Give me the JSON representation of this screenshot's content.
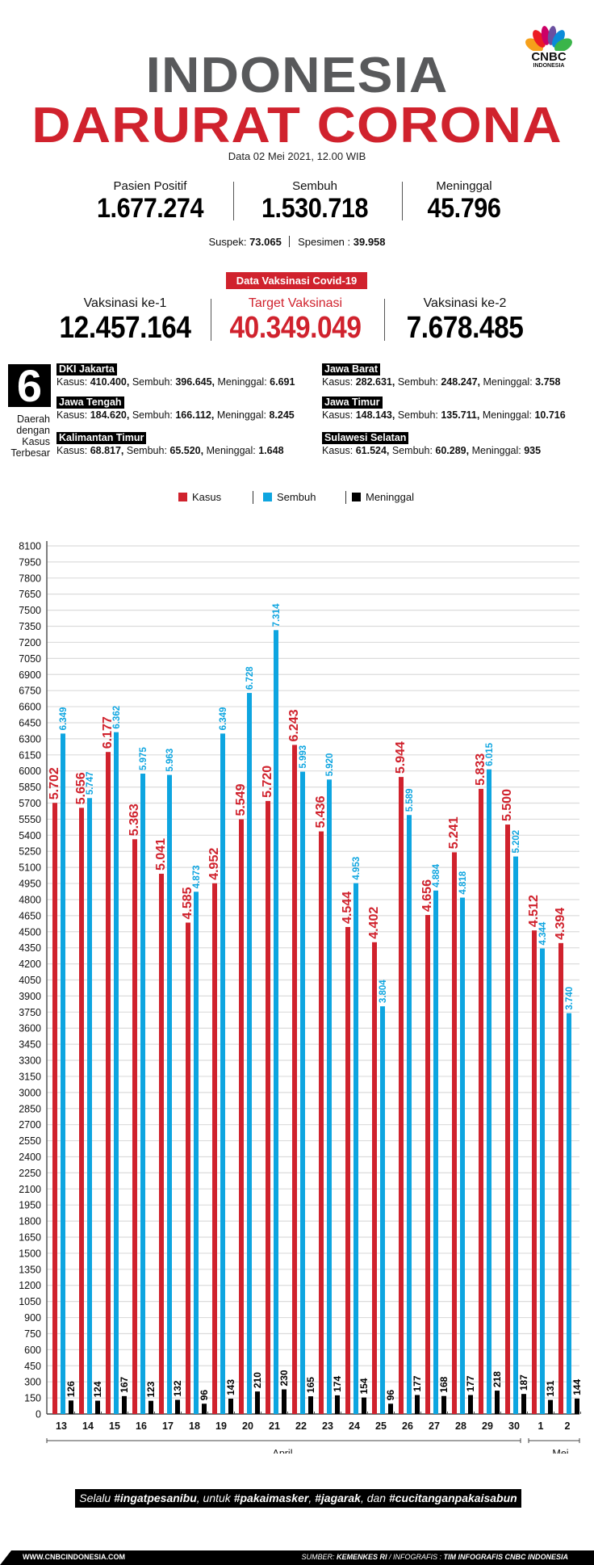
{
  "logo": {
    "brand": "CNBC",
    "sub": "INDONESIA",
    "icon": "peacock-logo-icon"
  },
  "header": {
    "title_line1": "INDONESIA",
    "title_line2": "DARURAT CORONA",
    "date": "Data 02 Mei  2021, 12.00 WIB"
  },
  "national_stats": [
    {
      "label": "Pasien Positif",
      "value": "1.677.274"
    },
    {
      "label": "Sembuh",
      "value": "1.530.718"
    },
    {
      "label": "Meninggal",
      "value": "45.796"
    }
  ],
  "sub_stats": {
    "suspek_label": "Suspek: ",
    "suspek_value": "73.065",
    "spesimen_label": "Spesimen : ",
    "spesimen_value": "39.958"
  },
  "vaccination": {
    "badge": "Data Vaksinasi Covid-19",
    "items": [
      {
        "label": "Vaksinasi ke-1",
        "value": "12.457.164"
      },
      {
        "label": "Target Vaksinasi",
        "value": "40.349.049"
      },
      {
        "label": "Vaksinasi ke-2",
        "value": "7.678.485"
      }
    ]
  },
  "regions_block": {
    "count": "6",
    "caption": [
      "Daerah",
      "dengan",
      "Kasus",
      "Terbesar"
    ],
    "kasus_label": "Kasus: ",
    "sembuh_label": "Sembuh: ",
    "meninggal_label": "Meninggal: ",
    "regions": [
      {
        "name": "DKI Jakarta",
        "kasus": "410.400,",
        "sembuh": "396.645,",
        "meninggal": "6.691"
      },
      {
        "name": "Jawa Barat",
        "kasus": "282.631,",
        "sembuh": "248.247,",
        "meninggal": "3.758"
      },
      {
        "name": "Jawa Tengah",
        "kasus": "184.620,",
        "sembuh": "166.112,",
        "meninggal": "8.245"
      },
      {
        "name": "Jawa Timur",
        "kasus": "148.143,",
        "sembuh": "135.711,",
        "meninggal": "10.716"
      },
      {
        "name": "Kalimantan Timur",
        "kasus": "68.817,",
        "sembuh": "65.520,",
        "meninggal": "1.648"
      },
      {
        "name": "Sulawesi Selatan",
        "kasus": "61.524,",
        "sembuh": "60.289,",
        "meninggal": "935"
      }
    ]
  },
  "colors": {
    "kasus": "#d0222d",
    "sembuh": "#0ea5e0",
    "meninggal": "#000000",
    "title_gray": "#58595b",
    "grid": "#dcdcdc"
  },
  "chart_data": {
    "type": "bar",
    "title": "",
    "xlabel": "",
    "ylabel": "",
    "ylim": [
      0,
      8100
    ],
    "ytick_step": 150,
    "grid": true,
    "legend_position": "top-center",
    "categories": [
      "13",
      "14",
      "15",
      "16",
      "17",
      "18",
      "19",
      "20",
      "21",
      "22",
      "23",
      "24",
      "25",
      "26",
      "27",
      "28",
      "29",
      "30",
      "1",
      "2"
    ],
    "month_groups": [
      {
        "label": "April",
        "from": "13",
        "to": "30"
      },
      {
        "label": "Mei",
        "from": "1",
        "to": "2"
      }
    ],
    "series": [
      {
        "name": "Kasus",
        "color": "#d0222d",
        "values": [
          5702,
          5656,
          6177,
          5363,
          5041,
          4585,
          4952,
          5549,
          5720,
          6243,
          5436,
          4544,
          4402,
          5944,
          4656,
          5241,
          5833,
          5500,
          4512,
          4394
        ],
        "labels": [
          "5.702",
          "5.656",
          "6.177",
          "5.363",
          "5.041",
          "4.585",
          "4.952",
          "5.549",
          "5.720",
          "6.243",
          "5.436",
          "4.544",
          "4.402",
          "5.944",
          "4.656",
          "5.241",
          "5.833",
          "5.500",
          "4.512",
          "4.394"
        ]
      },
      {
        "name": "Sembuh",
        "color": "#0ea5e0",
        "values": [
          6349,
          5747,
          6362,
          5975,
          5963,
          4873,
          6349,
          6728,
          7314,
          5993,
          5920,
          4953,
          3804,
          5589,
          4884,
          4818,
          6015,
          5202,
          4344,
          3740
        ],
        "labels": [
          "6.349",
          "5.747",
          "6.362",
          "5.975",
          "5.963",
          "4.873",
          "6.349",
          "6.728",
          "7.314",
          "5.993",
          "5.920",
          "4.953",
          "3.804",
          "5.589",
          "4.884",
          "4.818",
          "6.015",
          "5.202",
          "4.344",
          "3.740"
        ]
      },
      {
        "name": "Meninggal",
        "color": "#000000",
        "values": [
          126,
          124,
          167,
          123,
          132,
          96,
          143,
          210,
          230,
          165,
          174,
          154,
          96,
          177,
          168,
          177,
          218,
          187,
          131,
          144
        ],
        "labels": [
          "126",
          "124",
          "167",
          "123",
          "132",
          "96",
          "143",
          "210",
          "230",
          "165",
          "174",
          "154",
          "96",
          "177",
          "168",
          "177",
          "218",
          "187",
          "131",
          "144"
        ]
      }
    ]
  },
  "slogan": {
    "p1": "Selalu ",
    "h1": "#ingatpesanibu",
    "p2": ", untuk ",
    "h2": "#pakaimasker",
    "p3": ", ",
    "h3": "#jagarak",
    "p4": ", dan ",
    "h4": "#cucitanganpakaisabun"
  },
  "footer": {
    "url": "WWW.CNBCINDONESIA.COM",
    "src1": "SUMBER: ",
    "src2": "KEMENKES RI",
    "src3": " / INFOGRAFIS : ",
    "src4": "TIM INFOGRAFIS CNBC INDONESIA"
  }
}
